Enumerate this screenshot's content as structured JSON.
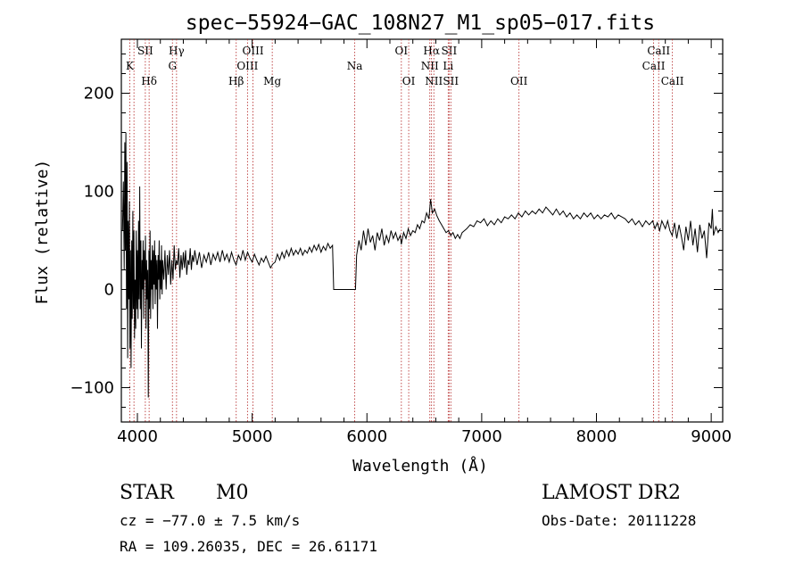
{
  "chart_data": {
    "type": "line",
    "title": "spec−55924−GAC_108N27_M1_sp05−017.fits",
    "xlabel": "Wavelength (Å)",
    "ylabel": "Flux (relative)",
    "xlim": [
      3860,
      9100
    ],
    "ylim": [
      -135,
      255
    ],
    "xticks": [
      4000,
      5000,
      6000,
      7000,
      8000,
      9000
    ],
    "yticks": [
      -100,
      0,
      100,
      200
    ],
    "grid": false,
    "series": [
      {
        "values": [
          [
            3870,
            60
          ],
          [
            3878,
            110
          ],
          [
            3885,
            20
          ],
          [
            3890,
            150
          ],
          [
            3895,
            40
          ],
          [
            3900,
            160
          ],
          [
            3905,
            -20
          ],
          [
            3910,
            130
          ],
          [
            3915,
            -70
          ],
          [
            3920,
            70
          ],
          [
            3925,
            -10
          ],
          [
            3930,
            90
          ],
          [
            3935,
            -60
          ],
          [
            3940,
            40
          ],
          [
            3945,
            -80
          ],
          [
            3950,
            50
          ],
          [
            3955,
            -30
          ],
          [
            3960,
            80
          ],
          [
            3965,
            -20
          ],
          [
            3970,
            60
          ],
          [
            3975,
            -50
          ],
          [
            3980,
            10
          ],
          [
            3985,
            -40
          ],
          [
            3990,
            60
          ],
          [
            3995,
            -20
          ],
          [
            4000,
            40
          ],
          [
            4005,
            -30
          ],
          [
            4010,
            70
          ],
          [
            4015,
            -10
          ],
          [
            4020,
            105
          ],
          [
            4025,
            -20
          ],
          [
            4030,
            50
          ],
          [
            4035,
            -60
          ],
          [
            4040,
            30
          ],
          [
            4045,
            0
          ],
          [
            4050,
            50
          ],
          [
            4055,
            -30
          ],
          [
            4060,
            40
          ],
          [
            4065,
            10
          ],
          [
            4070,
            55
          ],
          [
            4075,
            -40
          ],
          [
            4080,
            30
          ],
          [
            4085,
            -10
          ],
          [
            4090,
            20
          ],
          [
            4095,
            -110
          ],
          [
            4100,
            40
          ],
          [
            4105,
            -20
          ],
          [
            4110,
            60
          ],
          [
            4115,
            -30
          ],
          [
            4120,
            30
          ],
          [
            4125,
            0
          ],
          [
            4130,
            45
          ],
          [
            4135,
            -20
          ],
          [
            4140,
            40
          ],
          [
            4145,
            5
          ],
          [
            4150,
            50
          ],
          [
            4155,
            -15
          ],
          [
            4160,
            35
          ],
          [
            4165,
            0
          ],
          [
            4170,
            30
          ],
          [
            4175,
            -40
          ],
          [
            4180,
            35
          ],
          [
            4185,
            10
          ],
          [
            4190,
            50
          ],
          [
            4195,
            -10
          ],
          [
            4200,
            30
          ],
          [
            4205,
            0
          ],
          [
            4210,
            45
          ],
          [
            4215,
            -5
          ],
          [
            4220,
            30
          ],
          [
            4230,
            10
          ],
          [
            4240,
            40
          ],
          [
            4250,
            0
          ],
          [
            4260,
            35
          ],
          [
            4270,
            15
          ],
          [
            4280,
            40
          ],
          [
            4290,
            5
          ],
          [
            4300,
            30
          ],
          [
            4310,
            10
          ],
          [
            4320,
            45
          ],
          [
            4330,
            20
          ],
          [
            4340,
            30
          ],
          [
            4350,
            25
          ],
          [
            4360,
            42
          ],
          [
            4370,
            12
          ],
          [
            4380,
            35
          ],
          [
            4390,
            20
          ],
          [
            4400,
            38
          ],
          [
            4410,
            22
          ],
          [
            4420,
            40
          ],
          [
            4430,
            15
          ],
          [
            4440,
            30
          ],
          [
            4450,
            25
          ],
          [
            4460,
            42
          ],
          [
            4470,
            20
          ],
          [
            4480,
            35
          ],
          [
            4490,
            28
          ],
          [
            4500,
            40
          ],
          [
            4520,
            25
          ],
          [
            4540,
            38
          ],
          [
            4560,
            22
          ],
          [
            4580,
            35
          ],
          [
            4600,
            28
          ],
          [
            4620,
            38
          ],
          [
            4640,
            25
          ],
          [
            4660,
            36
          ],
          [
            4680,
            30
          ],
          [
            4700,
            38
          ],
          [
            4720,
            28
          ],
          [
            4740,
            40
          ],
          [
            4760,
            30
          ],
          [
            4780,
            36
          ],
          [
            4800,
            28
          ],
          [
            4820,
            38
          ],
          [
            4840,
            30
          ],
          [
            4860,
            25
          ],
          [
            4880,
            35
          ],
          [
            4900,
            30
          ],
          [
            4920,
            40
          ],
          [
            4940,
            30
          ],
          [
            4960,
            38
          ],
          [
            4980,
            32
          ],
          [
            5000,
            28
          ],
          [
            5020,
            36
          ],
          [
            5040,
            30
          ],
          [
            5060,
            25
          ],
          [
            5080,
            32
          ],
          [
            5100,
            28
          ],
          [
            5120,
            34
          ],
          [
            5140,
            28
          ],
          [
            5160,
            22
          ],
          [
            5180,
            26
          ],
          [
            5200,
            28
          ],
          [
            5220,
            36
          ],
          [
            5240,
            30
          ],
          [
            5260,
            38
          ],
          [
            5280,
            32
          ],
          [
            5300,
            40
          ],
          [
            5320,
            34
          ],
          [
            5340,
            42
          ],
          [
            5360,
            35
          ],
          [
            5380,
            40
          ],
          [
            5400,
            36
          ],
          [
            5420,
            42
          ],
          [
            5440,
            35
          ],
          [
            5460,
            40
          ],
          [
            5480,
            37
          ],
          [
            5500,
            43
          ],
          [
            5520,
            38
          ],
          [
            5540,
            45
          ],
          [
            5560,
            40
          ],
          [
            5580,
            46
          ],
          [
            5600,
            38
          ],
          [
            5620,
            44
          ],
          [
            5640,
            40
          ],
          [
            5660,
            47
          ],
          [
            5680,
            42
          ],
          [
            5700,
            45
          ],
          [
            5710,
            0
          ],
          [
            5900,
            0
          ],
          [
            5910,
            35
          ],
          [
            5930,
            50
          ],
          [
            5950,
            40
          ],
          [
            5970,
            60
          ],
          [
            5990,
            45
          ],
          [
            6010,
            62
          ],
          [
            6030,
            48
          ],
          [
            6050,
            55
          ],
          [
            6070,
            40
          ],
          [
            6090,
            58
          ],
          [
            6110,
            50
          ],
          [
            6130,
            62
          ],
          [
            6150,
            45
          ],
          [
            6170,
            55
          ],
          [
            6190,
            48
          ],
          [
            6210,
            60
          ],
          [
            6230,
            52
          ],
          [
            6250,
            58
          ],
          [
            6270,
            50
          ],
          [
            6290,
            55
          ],
          [
            6300,
            46
          ],
          [
            6320,
            58
          ],
          [
            6340,
            52
          ],
          [
            6360,
            62
          ],
          [
            6380,
            55
          ],
          [
            6400,
            60
          ],
          [
            6420,
            58
          ],
          [
            6440,
            66
          ],
          [
            6460,
            62
          ],
          [
            6480,
            70
          ],
          [
            6500,
            68
          ],
          [
            6520,
            78
          ],
          [
            6540,
            72
          ],
          [
            6555,
            92
          ],
          [
            6570,
            78
          ],
          [
            6590,
            82
          ],
          [
            6610,
            75
          ],
          [
            6630,
            70
          ],
          [
            6650,
            66
          ],
          [
            6670,
            62
          ],
          [
            6690,
            58
          ],
          [
            6710,
            60
          ],
          [
            6730,
            55
          ],
          [
            6750,
            58
          ],
          [
            6770,
            52
          ],
          [
            6790,
            56
          ],
          [
            6810,
            52
          ],
          [
            6830,
            58
          ],
          [
            6850,
            60
          ],
          [
            6870,
            62
          ],
          [
            6900,
            66
          ],
          [
            6930,
            64
          ],
          [
            6960,
            70
          ],
          [
            6990,
            68
          ],
          [
            7020,
            72
          ],
          [
            7050,
            65
          ],
          [
            7080,
            70
          ],
          [
            7110,
            66
          ],
          [
            7140,
            72
          ],
          [
            7170,
            68
          ],
          [
            7200,
            74
          ],
          [
            7230,
            72
          ],
          [
            7260,
            76
          ],
          [
            7290,
            72
          ],
          [
            7320,
            78
          ],
          [
            7350,
            74
          ],
          [
            7380,
            80
          ],
          [
            7410,
            76
          ],
          [
            7440,
            80
          ],
          [
            7470,
            77
          ],
          [
            7500,
            82
          ],
          [
            7530,
            78
          ],
          [
            7560,
            84
          ],
          [
            7590,
            80
          ],
          [
            7620,
            76
          ],
          [
            7650,
            82
          ],
          [
            7680,
            76
          ],
          [
            7710,
            80
          ],
          [
            7740,
            74
          ],
          [
            7770,
            78
          ],
          [
            7800,
            72
          ],
          [
            7830,
            76
          ],
          [
            7860,
            72
          ],
          [
            7890,
            78
          ],
          [
            7920,
            74
          ],
          [
            7950,
            78
          ],
          [
            7980,
            72
          ],
          [
            8010,
            76
          ],
          [
            8040,
            72
          ],
          [
            8070,
            76
          ],
          [
            8100,
            74
          ],
          [
            8130,
            78
          ],
          [
            8160,
            72
          ],
          [
            8190,
            76
          ],
          [
            8220,
            74
          ],
          [
            8250,
            72
          ],
          [
            8280,
            68
          ],
          [
            8310,
            72
          ],
          [
            8340,
            66
          ],
          [
            8370,
            70
          ],
          [
            8400,
            64
          ],
          [
            8430,
            70
          ],
          [
            8460,
            66
          ],
          [
            8490,
            70
          ],
          [
            8510,
            62
          ],
          [
            8530,
            68
          ],
          [
            8550,
            60
          ],
          [
            8570,
            70
          ],
          [
            8600,
            62
          ],
          [
            8620,
            70
          ],
          [
            8640,
            60
          ],
          [
            8660,
            55
          ],
          [
            8680,
            68
          ],
          [
            8700,
            52
          ],
          [
            8720,
            66
          ],
          [
            8740,
            54
          ],
          [
            8760,
            40
          ],
          [
            8780,
            64
          ],
          [
            8800,
            50
          ],
          [
            8820,
            70
          ],
          [
            8840,
            45
          ],
          [
            8860,
            62
          ],
          [
            8880,
            38
          ],
          [
            8900,
            66
          ],
          [
            8920,
            52
          ],
          [
            8940,
            60
          ],
          [
            8960,
            32
          ],
          [
            8980,
            68
          ],
          [
            9000,
            62
          ],
          [
            9010,
            82
          ],
          [
            9020,
            55
          ],
          [
            9040,
            64
          ],
          [
            9060,
            58
          ],
          [
            9080,
            62
          ]
        ]
      }
    ],
    "annotations": [
      {
        "label": "K",
        "x": 3934,
        "row": 2
      },
      {
        "label": "Hθ",
        "x": 3970,
        "row": 1,
        "nolabel": true
      },
      {
        "label": "SII",
        "x": 4069,
        "row": 1
      },
      {
        "label": "Hδ",
        "x": 4102,
        "row": 3
      },
      {
        "label": "Hγ",
        "x": 4341,
        "row": 1
      },
      {
        "label": "G",
        "x": 4305,
        "row": 2
      },
      {
        "label": "Hβ",
        "x": 4861,
        "row": 3
      },
      {
        "label": "OIII",
        "x": 4959,
        "row": 2
      },
      {
        "label": "OIII",
        "x": 5007,
        "row": 1
      },
      {
        "label": "Mg",
        "x": 5175,
        "row": 3
      },
      {
        "label": "Na",
        "x": 5894,
        "row": 2
      },
      {
        "label": "OI",
        "x": 6300,
        "row": 1
      },
      {
        "label": "OI",
        "x": 6364,
        "row": 3
      },
      {
        "label": "NII",
        "x": 6548,
        "row": 2
      },
      {
        "label": "Hα",
        "x": 6563,
        "row": 1
      },
      {
        "label": "NII",
        "x": 6583,
        "row": 3
      },
      {
        "label": "SII",
        "x": 6716,
        "row": 1
      },
      {
        "label": "Li",
        "x": 6708,
        "row": 2
      },
      {
        "label": "SII",
        "x": 6731,
        "row": 3
      },
      {
        "label": "OII",
        "x": 7325,
        "row": 3
      },
      {
        "label": "CaII",
        "x": 8498,
        "row": 2
      },
      {
        "label": "CaII",
        "x": 8542,
        "row": 1
      },
      {
        "label": "CaII",
        "x": 8662,
        "row": 3
      }
    ]
  },
  "info": {
    "object_type": "STAR",
    "subclass": "M0",
    "survey": "LAMOST DR2",
    "redshift": "cz = −77.0 ± 7.5 km/s",
    "obs_date": "Obs-Date: 20111228",
    "coords": "RA = 109.26035, DEC =  26.61171"
  }
}
